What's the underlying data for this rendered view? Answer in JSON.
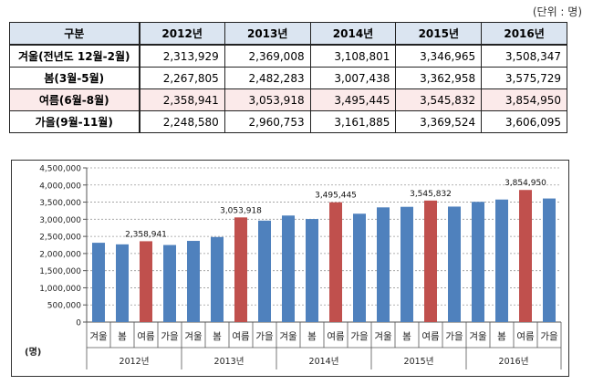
{
  "table": {
    "unit_label": "(단위 : 명)",
    "headers": [
      "구분",
      "2012년",
      "2013년",
      "2014년",
      "2015년",
      "2016년"
    ],
    "rows": [
      {
        "label": "겨울(전년도 12월-2월)",
        "values": [
          "2,313,929",
          "2,369,008",
          "3,108,801",
          "3,346,965",
          "3,508,347"
        ]
      },
      {
        "label": "봄(3월-5월)",
        "values": [
          "2,267,805",
          "2,482,283",
          "3,007,438",
          "3,362,958",
          "3,575,729"
        ]
      },
      {
        "label": "여름(6월-8월)",
        "values": [
          "2,358,941",
          "3,053,918",
          "3,495,445",
          "3,545,832",
          "3,854,950"
        ]
      },
      {
        "label": "가을(9월-11월)",
        "values": [
          "2,248,580",
          "2,960,753",
          "3,161,885",
          "3,369,524",
          "3,606,095"
        ]
      }
    ]
  },
  "chart_data": {
    "type": "bar",
    "ylabel": "(명)",
    "ylim": [
      0,
      4500000
    ],
    "yticks": [
      0,
      500000,
      1000000,
      1500000,
      2000000,
      2500000,
      3000000,
      3500000,
      4000000,
      4500000
    ],
    "ytick_labels": [
      "0",
      "500,000",
      "1,000,000",
      "1,500,000",
      "2,000,000",
      "2,500,000",
      "3,000,000",
      "3,500,000",
      "4,000,000",
      "4,500,000"
    ],
    "grid": "dashed horizontal at major ticks",
    "groups": [
      "2012년",
      "2013년",
      "2014년",
      "2015년",
      "2016년"
    ],
    "seasons": [
      "겨울",
      "봄",
      "여름",
      "가을"
    ],
    "values": [
      [
        2313929,
        2267805,
        2358941,
        2248580
      ],
      [
        2369008,
        2482283,
        3053918,
        2960753
      ],
      [
        3108801,
        3007438,
        3495445,
        3161885
      ],
      [
        3346965,
        3362958,
        3545832,
        3369524
      ],
      [
        3508347,
        3575729,
        3854950,
        3606095
      ]
    ],
    "annotations": [
      "2,358,941",
      "3,053,918",
      "3,495,445",
      "3,545,832",
      "3,854,950"
    ],
    "highlight_season": "여름",
    "colors": {
      "default": "#4f81bd",
      "highlight": "#c0504d",
      "grid": "#9a9a9a",
      "axis": "#555555"
    }
  }
}
